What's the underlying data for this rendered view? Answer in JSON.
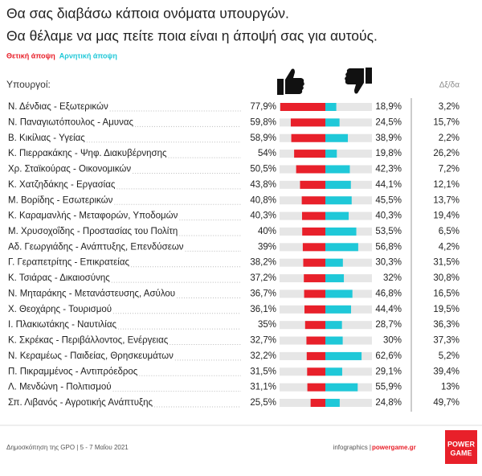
{
  "chart_data": {
    "type": "diverging-bar",
    "title": [
      "Θα σας διαβάσω κάποια ονόματα υπουργών.",
      "Θα θέλαμε να μας πείτε ποια είναι η άποψή σας για αυτούς."
    ],
    "category_label": "Υπουργοί:",
    "categories": [
      "Ν. Δένδιας - Εξωτερικών",
      "Ν. Παναγιωτόπουλος - Αμυνας",
      "Β. Κικίλιας - Υγείας",
      "Κ. Πιερρακάκης - Ψηφ. Διακυβέρνησης",
      "Χρ. Σταϊκούρας - Οικονομικών",
      "Κ. Χατζηδάκης - Εργασίας",
      "Μ. Βορίδης - Εσωτερικών",
      "Κ. Καραμανλής - Μεταφορών, Υποδομών",
      "Μ. Χρυσοχοΐδης - Προστασίας του Πολίτη",
      "Αδ. Γεωργιάδης - Ανάπτυξης, Επενδύσεων",
      "Γ. Γεραπετρίτης - Επικρατείας",
      "Κ. Τσιάρας - Δικαιοσύνης",
      "Ν. Μηταράκης - Μετανάστευσης, Ασύλου",
      "Χ. Θεοχάρης - Τουρισμού",
      "Ι. Πλακιωτάκης - Ναυτιλίας",
      "Κ. Σκρέκας - Περιβάλλοντος, Ενέργειας",
      "Ν. Κεραμέως - Παιδείας, Θρησκευμάτων",
      "Π. Πικραμμένος - Αντιπρόεδρος",
      "Λ. Μενδώνη - Πολιτισμού",
      "Σπ. Λιβανός - Αγροτικής Ανάπτυξης"
    ],
    "series": [
      {
        "name": "Θετική άποψη",
        "color": "#e8202a",
        "values": [
          77.9,
          59.8,
          58.9,
          54,
          50.5,
          43.8,
          40.8,
          40.3,
          40,
          39,
          38.2,
          37.2,
          36.7,
          36.1,
          35,
          32.7,
          32.2,
          31.5,
          31.1,
          25.5
        ],
        "value_labels": [
          "77,9%",
          "59,8%",
          "58,9%",
          "54%",
          "50,5%",
          "43,8%",
          "40,8%",
          "40,3%",
          "40%",
          "39%",
          "38,2%",
          "37,2%",
          "36,7%",
          "36,1%",
          "35%",
          "32,7%",
          "32,2%",
          "31,5%",
          "31,1%",
          "25,5%"
        ]
      },
      {
        "name": "Αρνητική άποψη",
        "color": "#1fc8d8",
        "values": [
          18.9,
          24.5,
          38.9,
          19.8,
          42.3,
          44.1,
          45.5,
          40.3,
          53.5,
          56.8,
          30.3,
          32,
          46.8,
          44.4,
          28.7,
          30,
          62.6,
          29.1,
          55.9,
          24.8
        ],
        "value_labels": [
          "18,9%",
          "24,5%",
          "38,9%",
          "19,8%",
          "42,3%",
          "44,1%",
          "45,5%",
          "40,3%",
          "53,5%",
          "56,8%",
          "30,3%",
          "32%",
          "46,8%",
          "44,4%",
          "28,7%",
          "30%",
          "62,6%",
          "29,1%",
          "55,9%",
          "24,8%"
        ]
      },
      {
        "name": "Δξ/δα",
        "values": [
          3.2,
          15.7,
          2.2,
          26.2,
          7.2,
          12.1,
          13.7,
          19.4,
          6.5,
          4.2,
          31.5,
          30.8,
          16.5,
          19.5,
          36.3,
          37.3,
          5.2,
          39.4,
          13,
          49.7
        ],
        "value_labels": [
          "3,2%",
          "15,7%",
          "2,2%",
          "26,2%",
          "7,2%",
          "12,1%",
          "13,7%",
          "19,4%",
          "6,5%",
          "4,2%",
          "31,5%",
          "30,8%",
          "16,5%",
          "19,5%",
          "36,3%",
          "37,3%",
          "5,2%",
          "39,4%",
          "13%",
          "49,7%"
        ]
      }
    ],
    "footer": "Δημοσκόπηση της GPO | 5 - 7 Μαΐου 2021",
    "credit": "infographics | ",
    "site": "powergame.gr",
    "logo": [
      "POWER",
      "GAME"
    ]
  }
}
